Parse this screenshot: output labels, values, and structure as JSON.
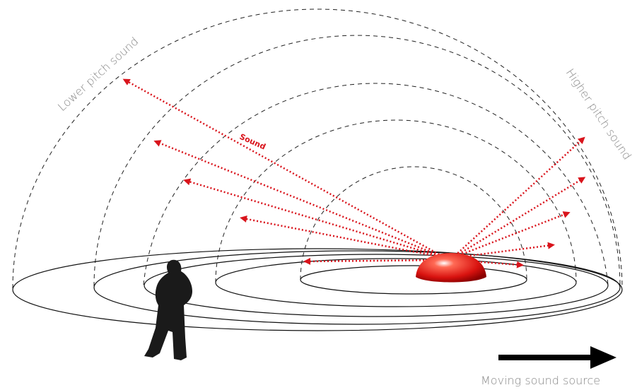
{
  "labels": {
    "lower_pitch": "Lower pitch sound",
    "higher_pitch": "Higher pitch sound",
    "sound": "Sound",
    "moving_source": "Moving sound source"
  }
}
